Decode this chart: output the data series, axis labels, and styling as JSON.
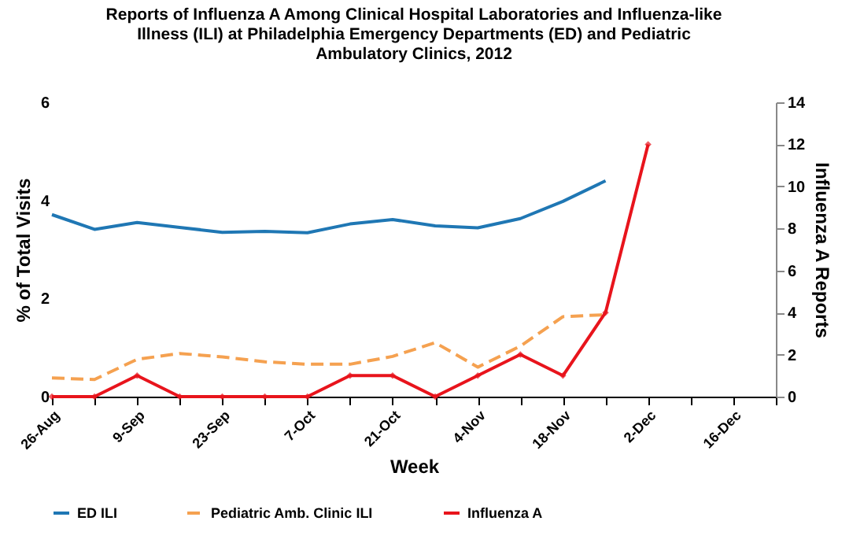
{
  "chart_data": {
    "type": "line",
    "title": "Reports of Influenza A Among Clinical Hospital Laboratories and Influenza-like\nIllness (ILI)  at Philadelphia Emergency Departments (ED) and Pediatric\nAmbulatory Clinics, 2012",
    "xlabel": "Week",
    "ylabel": "% of Total Visits",
    "y2label": "Influenza A Reports",
    "categories": [
      "26-Aug",
      null,
      "9-Sep",
      null,
      "23-Sep",
      null,
      "7-Oct",
      null,
      "21-Oct",
      null,
      "4-Nov",
      null,
      "18-Nov",
      null,
      "2-Dec",
      null,
      "16-Dec",
      null
    ],
    "series": [
      {
        "name": "ED ILI",
        "color": "#1f77b4",
        "line_style": "solid",
        "marker": "none",
        "values": [
          3.71,
          3.41,
          3.55,
          3.45,
          3.35,
          3.37,
          3.34,
          3.52,
          3.61,
          3.48,
          3.44,
          3.63,
          3.98,
          4.4,
          null,
          null,
          null,
          null
        ]
      },
      {
        "name": "Pediatric Amb. Clinic ILI",
        "color": "#f5a150",
        "line_style": "dashed",
        "marker": "none",
        "values": [
          0.38,
          0.35,
          0.76,
          0.88,
          0.81,
          0.71,
          0.66,
          0.66,
          0.82,
          1.1,
          0.6,
          1.03,
          1.63,
          1.67,
          null,
          null,
          null,
          null
        ]
      },
      {
        "name": "Influenza A",
        "color": "#e8141c",
        "line_style": "solid",
        "marker": "diamond",
        "axis": "y2",
        "values": [
          0,
          0,
          1,
          0,
          0,
          0,
          0,
          1,
          1,
          0,
          1,
          2,
          1,
          4,
          12,
          null,
          null,
          null
        ]
      }
    ],
    "ylim": [
      0,
      6
    ],
    "yticks": [
      0,
      2,
      4,
      6
    ],
    "y2lim": [
      0,
      14
    ],
    "y2ticks": [
      0,
      2,
      4,
      6,
      8,
      10,
      12,
      14
    ],
    "legend": "bottom",
    "grid": false
  }
}
